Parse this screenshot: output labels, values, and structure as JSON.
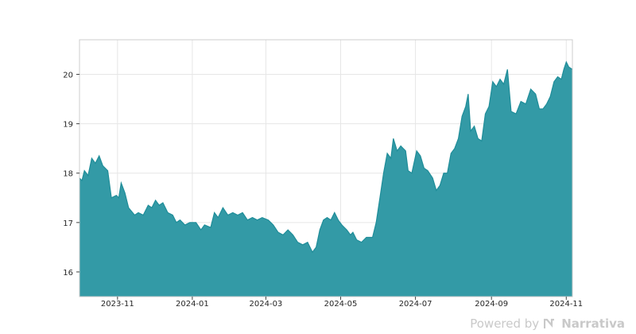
{
  "chart_data": {
    "type": "area",
    "title": "",
    "xlabel": "",
    "ylabel": "",
    "ylim": [
      15.5,
      20.7
    ],
    "xlim": [
      "2023-10-01",
      "2024-11-06"
    ],
    "x_ticks": [
      "2023-11",
      "2024-01",
      "2024-03",
      "2024-05",
      "2024-07",
      "2024-09",
      "2024-11"
    ],
    "y_ticks": [
      16,
      17,
      18,
      19,
      20
    ],
    "grid": true,
    "fill_color": "#339aa6",
    "line_color": "#1f8d99",
    "series": [
      {
        "points": [
          [
            "2023-10-01",
            17.9
          ],
          [
            "2023-10-03",
            17.85
          ],
          [
            "2023-10-05",
            18.05
          ],
          [
            "2023-10-08",
            17.95
          ],
          [
            "2023-10-11",
            18.3
          ],
          [
            "2023-10-14",
            18.2
          ],
          [
            "2023-10-17",
            18.35
          ],
          [
            "2023-10-20",
            18.15
          ],
          [
            "2023-10-24",
            18.05
          ],
          [
            "2023-10-27",
            17.5
          ],
          [
            "2023-10-31",
            17.55
          ],
          [
            "2023-11-02",
            17.5
          ],
          [
            "2023-11-04",
            17.8
          ],
          [
            "2023-11-07",
            17.6
          ],
          [
            "2023-11-10",
            17.3
          ],
          [
            "2023-11-15",
            17.15
          ],
          [
            "2023-11-18",
            17.2
          ],
          [
            "2023-11-22",
            17.15
          ],
          [
            "2023-11-26",
            17.35
          ],
          [
            "2023-11-29",
            17.3
          ],
          [
            "2023-12-02",
            17.45
          ],
          [
            "2023-12-05",
            17.35
          ],
          [
            "2023-12-08",
            17.4
          ],
          [
            "2023-12-12",
            17.2
          ],
          [
            "2023-12-16",
            17.15
          ],
          [
            "2023-12-19",
            17.0
          ],
          [
            "2023-12-22",
            17.05
          ],
          [
            "2023-12-26",
            16.95
          ],
          [
            "2023-12-30",
            17.0
          ],
          [
            "2024-01-04",
            17.0
          ],
          [
            "2024-01-08",
            16.85
          ],
          [
            "2024-01-11",
            16.95
          ],
          [
            "2024-01-16",
            16.9
          ],
          [
            "2024-01-19",
            17.2
          ],
          [
            "2024-01-22",
            17.1
          ],
          [
            "2024-01-26",
            17.3
          ],
          [
            "2024-01-30",
            17.15
          ],
          [
            "2024-02-03",
            17.2
          ],
          [
            "2024-02-07",
            17.15
          ],
          [
            "2024-02-11",
            17.2
          ],
          [
            "2024-02-15",
            17.05
          ],
          [
            "2024-02-19",
            17.1
          ],
          [
            "2024-02-23",
            17.05
          ],
          [
            "2024-02-27",
            17.1
          ],
          [
            "2024-03-03",
            17.05
          ],
          [
            "2024-03-07",
            16.95
          ],
          [
            "2024-03-11",
            16.8
          ],
          [
            "2024-03-15",
            16.75
          ],
          [
            "2024-03-19",
            16.85
          ],
          [
            "2024-03-23",
            16.75
          ],
          [
            "2024-03-27",
            16.6
          ],
          [
            "2024-03-31",
            16.55
          ],
          [
            "2024-04-04",
            16.6
          ],
          [
            "2024-04-08",
            16.4
          ],
          [
            "2024-04-11",
            16.5
          ],
          [
            "2024-04-14",
            16.85
          ],
          [
            "2024-04-17",
            17.05
          ],
          [
            "2024-04-20",
            17.1
          ],
          [
            "2024-04-23",
            17.05
          ],
          [
            "2024-04-26",
            17.2
          ],
          [
            "2024-04-29",
            17.05
          ],
          [
            "2024-05-02",
            16.95
          ],
          [
            "2024-05-06",
            16.85
          ],
          [
            "2024-05-09",
            16.75
          ],
          [
            "2024-05-11",
            16.8
          ],
          [
            "2024-05-14",
            16.65
          ],
          [
            "2024-05-18",
            16.6
          ],
          [
            "2024-05-22",
            16.7
          ],
          [
            "2024-05-27",
            16.7
          ],
          [
            "2024-05-30",
            17.0
          ],
          [
            "2024-06-02",
            17.5
          ],
          [
            "2024-06-05",
            18.0
          ],
          [
            "2024-06-08",
            18.4
          ],
          [
            "2024-06-11",
            18.3
          ],
          [
            "2024-06-13",
            18.7
          ],
          [
            "2024-06-16",
            18.45
          ],
          [
            "2024-06-19",
            18.55
          ],
          [
            "2024-06-23",
            18.45
          ],
          [
            "2024-06-25",
            18.05
          ],
          [
            "2024-06-28",
            18.0
          ],
          [
            "2024-07-02",
            18.45
          ],
          [
            "2024-07-05",
            18.35
          ],
          [
            "2024-07-08",
            18.1
          ],
          [
            "2024-07-11",
            18.05
          ],
          [
            "2024-07-15",
            17.9
          ],
          [
            "2024-07-18",
            17.65
          ],
          [
            "2024-07-21",
            17.75
          ],
          [
            "2024-07-24",
            18.0
          ],
          [
            "2024-07-27",
            18.0
          ],
          [
            "2024-07-30",
            18.4
          ],
          [
            "2024-08-02",
            18.5
          ],
          [
            "2024-08-05",
            18.7
          ],
          [
            "2024-08-08",
            19.15
          ],
          [
            "2024-08-11",
            19.35
          ],
          [
            "2024-08-13",
            19.6
          ],
          [
            "2024-08-15",
            18.85
          ],
          [
            "2024-08-18",
            18.95
          ],
          [
            "2024-08-21",
            18.7
          ],
          [
            "2024-08-24",
            18.65
          ],
          [
            "2024-08-27",
            19.2
          ],
          [
            "2024-08-30",
            19.35
          ],
          [
            "2024-09-02",
            19.85
          ],
          [
            "2024-09-05",
            19.75
          ],
          [
            "2024-09-08",
            19.9
          ],
          [
            "2024-09-11",
            19.8
          ],
          [
            "2024-09-14",
            20.1
          ],
          [
            "2024-09-17",
            19.25
          ],
          [
            "2024-09-21",
            19.2
          ],
          [
            "2024-09-25",
            19.45
          ],
          [
            "2024-09-29",
            19.4
          ],
          [
            "2024-10-03",
            19.7
          ],
          [
            "2024-10-07",
            19.6
          ],
          [
            "2024-10-10",
            19.3
          ],
          [
            "2024-10-13",
            19.3
          ],
          [
            "2024-10-16",
            19.4
          ],
          [
            "2024-10-19",
            19.55
          ],
          [
            "2024-10-22",
            19.85
          ],
          [
            "2024-10-25",
            19.95
          ],
          [
            "2024-10-28",
            19.9
          ],
          [
            "2024-10-30",
            20.1
          ],
          [
            "2024-11-01",
            20.25
          ],
          [
            "2024-11-03",
            20.15
          ],
          [
            "2024-11-06",
            20.1
          ]
        ]
      }
    ]
  },
  "footer": {
    "powered_by": "Powered by",
    "brand": "Narrativa"
  }
}
